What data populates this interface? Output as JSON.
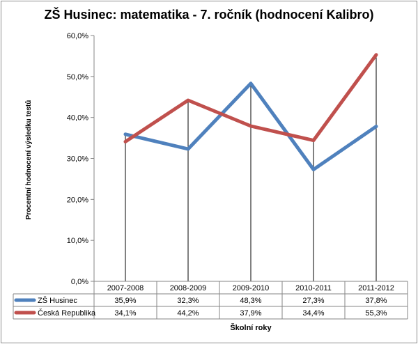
{
  "title": "ZŠ Husinec:  matematika - 7. ročník (hodnocení Kalibro)",
  "chart_data": {
    "type": "line",
    "title": "ZŠ Husinec:  matematika - 7. ročník (hodnocení Kalibro)",
    "xlabel": "Školní roky",
    "ylabel": "Procentní hodnocení výsledku testů",
    "categories": [
      "2007-2008",
      "2008-2009",
      "2009-2010",
      "2010-2011",
      "2011-2012"
    ],
    "ylim": [
      0,
      60
    ],
    "yticks": [
      "0,0%",
      "10,0%",
      "20,0%",
      "30,0%",
      "40,0%",
      "50,0%",
      "60,0%"
    ],
    "grid": false,
    "legend": "data-table",
    "series": [
      {
        "name": "ZŠ Husinec",
        "color": "#4f81bd",
        "values": [
          35.9,
          32.3,
          48.3,
          27.3,
          37.8
        ],
        "labels": [
          "35,9%",
          "32,3%",
          "48,3%",
          "27,3%",
          "37,8%"
        ]
      },
      {
        "name": "Česká Republika",
        "color": "#c0504d",
        "values": [
          34.1,
          44.2,
          37.9,
          34.4,
          55.3
        ],
        "labels": [
          "34,1%",
          "44,2%",
          "37,9%",
          "34,4%",
          "55,3%"
        ]
      }
    ]
  }
}
